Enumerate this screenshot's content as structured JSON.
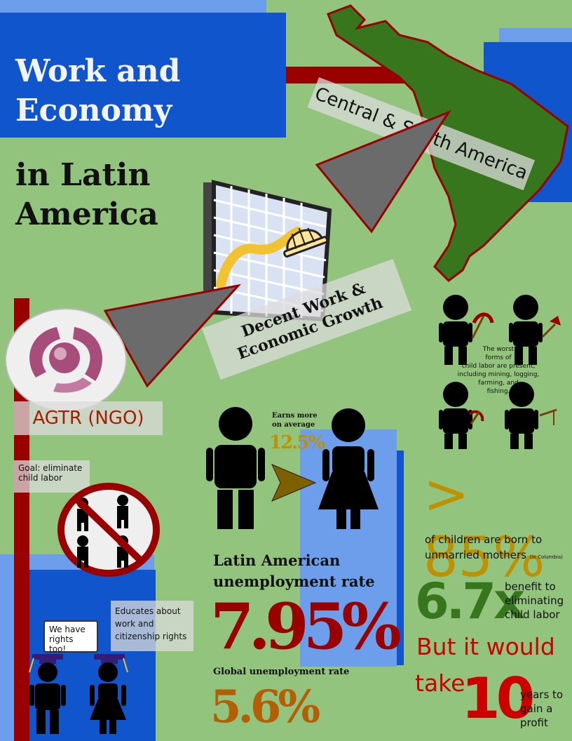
{
  "title": {
    "line1": "Work and",
    "line2": "Economy",
    "line3": "in Latin",
    "line4": "America"
  },
  "region_label": "Central & South America",
  "sdg_label": {
    "line1": "Decent Work &",
    "line2": "Economic Growth"
  },
  "ngo": {
    "name": "AGTR (NGO)",
    "goal_line1": "Goal: eliminate",
    "goal_line2": "child labor",
    "educates_line1": "Educates about",
    "educates_line2": "work and",
    "educates_line3": "citizenship rights",
    "speech_line1": "We have",
    "speech_line2": "rights too!"
  },
  "child_labor": {
    "line1": "The worst",
    "line2": "forms of",
    "line3": "child labor are present,",
    "line4": "including mining, logging,",
    "line5": "farming, and",
    "line6": "fishing."
  },
  "gender_gap": {
    "note_line1": "Earns more",
    "note_line2": "on average",
    "value": "12.5%"
  },
  "unemployment": {
    "latin_label_line1": "Latin American",
    "latin_label_line2": "unemployment rate",
    "latin_value": "7.95%",
    "global_label": "Global unemployment rate",
    "global_value": "5.6%"
  },
  "births": {
    "value": "> 85%",
    "line1": "of children are born to",
    "line2": "unmarried mothers",
    "note": "(in Columbia)"
  },
  "benefit": {
    "value": "6.7x",
    "line1": "benefit to",
    "line2": "eliminating",
    "line3": "child labor",
    "but": "But it would",
    "take": "take",
    "years": "10",
    "years_line1": "years to",
    "years_line2": "gain a",
    "years_line3": "profit"
  },
  "colors": {
    "background": "#93c47d",
    "blue_dark": "#1155cc",
    "blue_light": "#6d9eeb",
    "red_bar": "#990000",
    "gold": "#bf9000",
    "green_dark": "#38761d",
    "red_text": "#cc0000"
  }
}
